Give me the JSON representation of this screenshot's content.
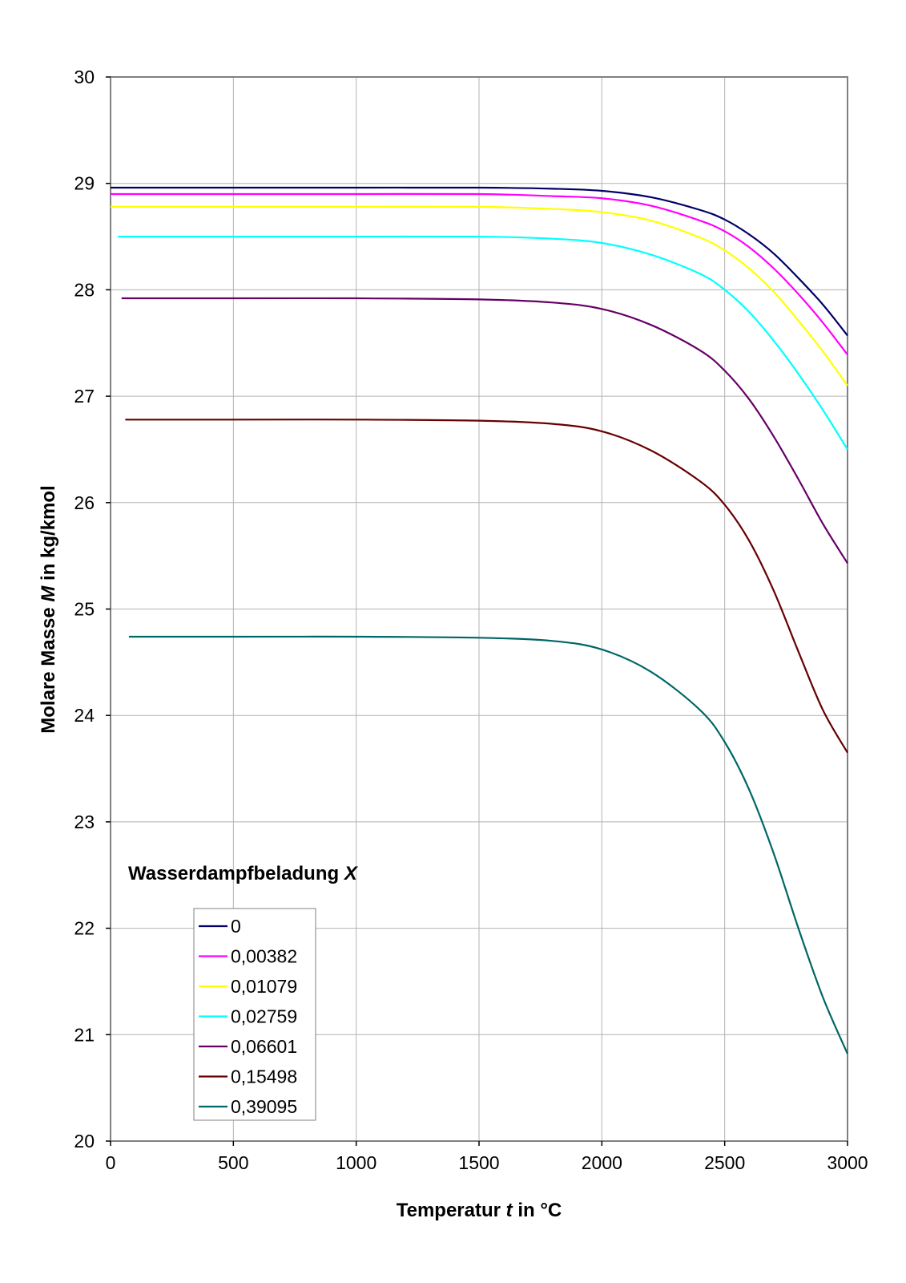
{
  "chart_data": {
    "type": "line",
    "title": "",
    "xlabel": {
      "prefix": "Temperatur ",
      "var": "t",
      "suffix": " in °C"
    },
    "ylabel": {
      "prefix": "Molare Masse ",
      "var": "M",
      "suffix": " in kg/kmol"
    },
    "xlim": [
      0,
      3000
    ],
    "ylim": [
      20,
      30
    ],
    "xticks": [
      "0",
      "500",
      "1000",
      "1500",
      "2000",
      "2500",
      "3000"
    ],
    "yticks": [
      "20",
      "21",
      "22",
      "23",
      "24",
      "25",
      "26",
      "27",
      "28",
      "29",
      "30"
    ],
    "grid": true,
    "legend_title": {
      "prefix": "Wasserdampfbeladung ",
      "var": "X"
    },
    "legend_position": "bottom-left",
    "x": [
      0,
      500,
      1000,
      1500,
      1800,
      2000,
      2200,
      2400,
      2500,
      2600,
      2700,
      2800,
      2900,
      3000
    ],
    "series": [
      {
        "name": "0",
        "color": "#000066",
        "x_start": 0,
        "values": [
          28.96,
          28.96,
          28.96,
          28.96,
          28.95,
          28.93,
          28.87,
          28.75,
          28.66,
          28.52,
          28.34,
          28.11,
          27.86,
          27.57
        ]
      },
      {
        "name": "0,00382",
        "color": "#ff00ff",
        "x_start": 0,
        "values": [
          28.9,
          28.9,
          28.9,
          28.9,
          28.88,
          28.86,
          28.79,
          28.65,
          28.55,
          28.4,
          28.2,
          27.96,
          27.69,
          27.39
        ]
      },
      {
        "name": "0,01079",
        "color": "#ffff00",
        "x_start": 0,
        "values": [
          28.78,
          28.78,
          28.78,
          28.78,
          28.76,
          28.73,
          28.65,
          28.49,
          28.37,
          28.2,
          27.98,
          27.71,
          27.42,
          27.1
        ]
      },
      {
        "name": "0,02759",
        "color": "#00ffff",
        "x_start": 30,
        "values": [
          28.5,
          28.5,
          28.5,
          28.5,
          28.48,
          28.44,
          28.33,
          28.15,
          28.0,
          27.79,
          27.52,
          27.21,
          26.87,
          26.5
        ]
      },
      {
        "name": "0,06601",
        "color": "#660066",
        "x_start": 45,
        "values": [
          27.92,
          27.92,
          27.92,
          27.91,
          27.88,
          27.82,
          27.67,
          27.43,
          27.24,
          26.97,
          26.62,
          26.22,
          25.8,
          25.43
        ]
      },
      {
        "name": "0,15498",
        "color": "#660000",
        "x_start": 60,
        "values": [
          26.78,
          26.78,
          26.78,
          26.77,
          26.74,
          26.67,
          26.49,
          26.2,
          25.98,
          25.64,
          25.17,
          24.6,
          24.05,
          23.65
        ]
      },
      {
        "name": "0,39095",
        "color": "#006666",
        "x_start": 75,
        "values": [
          24.74,
          24.74,
          24.74,
          24.73,
          24.7,
          24.62,
          24.41,
          24.05,
          23.75,
          23.3,
          22.7,
          22.0,
          21.35,
          20.82
        ]
      }
    ]
  }
}
